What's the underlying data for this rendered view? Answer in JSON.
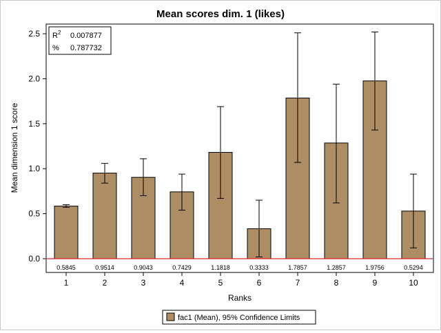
{
  "chart_data": {
    "type": "bar",
    "title": "Mean scores dim. 1 (likes)",
    "xlabel": "Ranks",
    "ylabel": "Mean dimension 1 score",
    "categories": [
      "1",
      "2",
      "3",
      "4",
      "5",
      "6",
      "7",
      "8",
      "9",
      "10"
    ],
    "series": [
      {
        "name": "fac1 (Mean), 95% Confidence Limits",
        "values": [
          0.5845,
          0.9514,
          0.9043,
          0.7429,
          1.1818,
          0.3333,
          1.7857,
          1.2857,
          1.9756,
          0.5294
        ],
        "ci_low": [
          0.57,
          0.84,
          0.7,
          0.54,
          0.67,
          0.02,
          1.07,
          0.62,
          1.43,
          0.12
        ],
        "ci_high": [
          0.6,
          1.06,
          1.11,
          0.94,
          1.69,
          0.65,
          2.51,
          1.94,
          2.52,
          0.94
        ]
      }
    ],
    "data_labels": [
      "0.5845",
      "0.9514",
      "0.9043",
      "0.7429",
      "1.1818",
      "0.3333",
      "1.7857",
      "1.2857",
      "1.9756",
      "0.5294"
    ],
    "y_ticks": [
      "0.0",
      "0.5",
      "1.0",
      "1.5",
      "2.0",
      "2.5"
    ],
    "ylim": [
      0,
      2.55
    ],
    "reference_line": {
      "y": 0,
      "color": "#e02020"
    },
    "stats": {
      "r2_label": "R",
      "r2_sup": "2",
      "r2_value": "0.007877",
      "pct_label": "%",
      "pct_value": "0.787732"
    },
    "legend_label": "fac1 (Mean), 95% Confidence Limits",
    "legend_position": "bottom-center",
    "grid": false,
    "colors": {
      "bar_fill": "#ae8c64",
      "bar_stroke": "#000000",
      "ref_line": "#e02020"
    }
  }
}
